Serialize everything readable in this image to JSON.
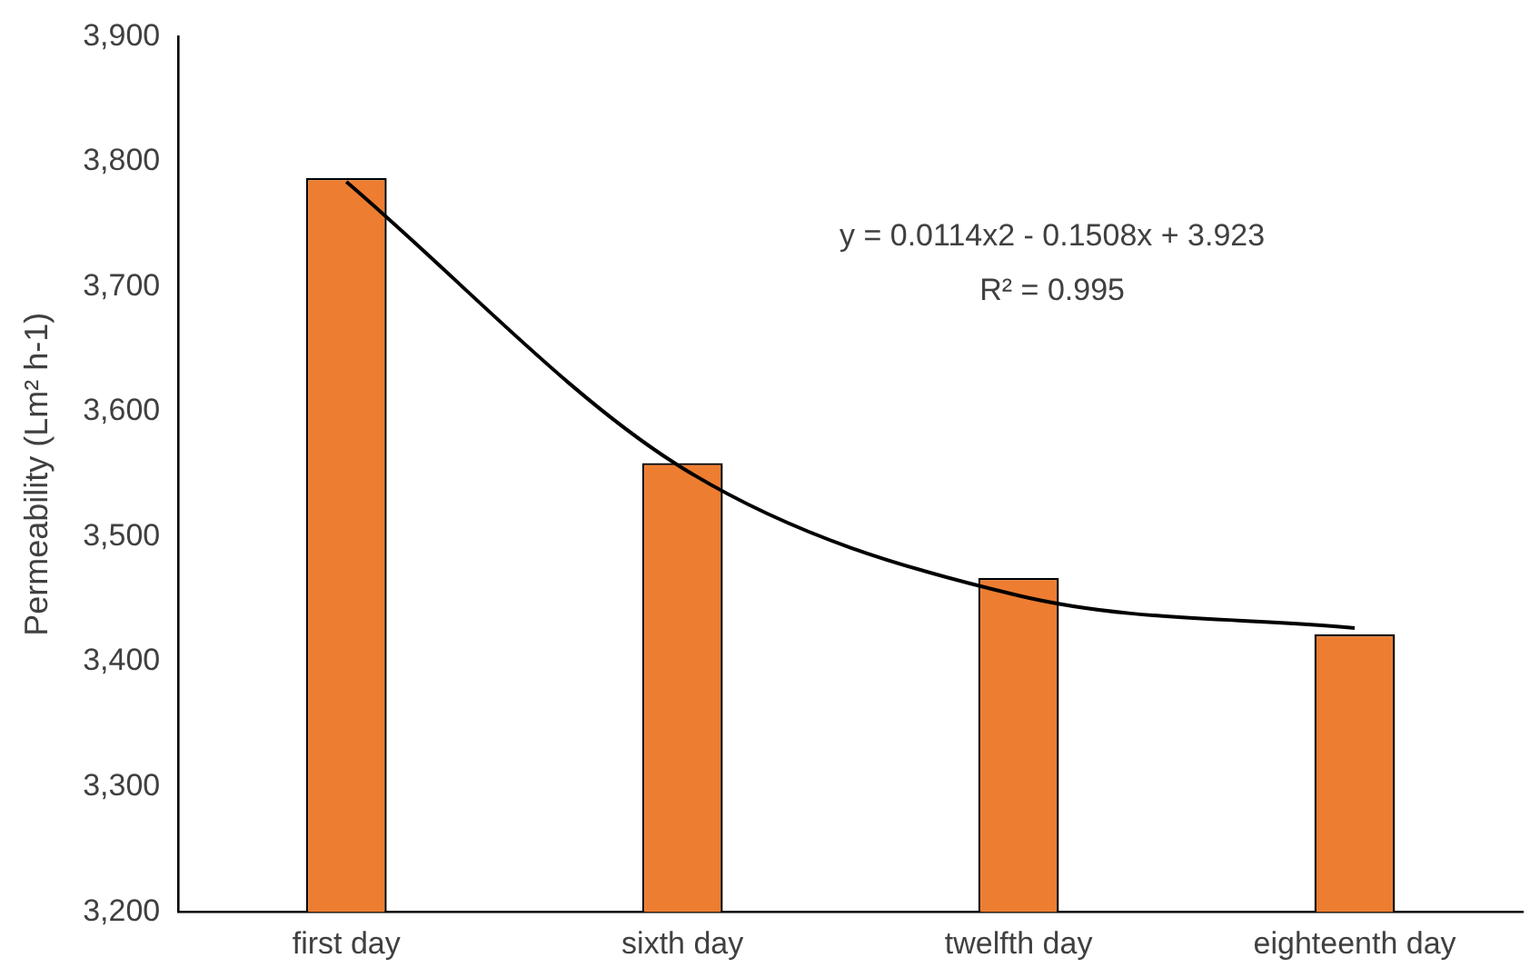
{
  "chart_data": {
    "type": "bar",
    "ylabel": "Permeability (Lm² h-1)",
    "categories": [
      "first day",
      "sixth day",
      "twelfth day",
      "eighteenth day"
    ],
    "series": [
      {
        "color": "#ed7d31",
        "values": [
          3787,
          3559,
          3467,
          3422
        ]
      },
      {
        "type": "line",
        "color": "#000000",
        "values": [
          3784,
          3555,
          3453,
          3427
        ],
        "marker": "none"
      }
    ],
    "ylim": [
      3200,
      3900
    ],
    "yticks": [
      {
        "value": 3200,
        "label": "3,200"
      },
      {
        "value": 3300,
        "label": "3,300"
      },
      {
        "value": 3400,
        "label": "3,400"
      },
      {
        "value": 3500,
        "label": "3,500"
      },
      {
        "value": 3600,
        "label": "3,600"
      },
      {
        "value": 3700,
        "label": "3,700"
      },
      {
        "value": 3800,
        "label": "3,800"
      },
      {
        "value": 3900,
        "label": "3,900"
      }
    ],
    "annotations": [
      "y = 0.0114x2 - 0.1508x + 3.923",
      "R² = 0.995"
    ],
    "grid": false,
    "legend": false
  }
}
